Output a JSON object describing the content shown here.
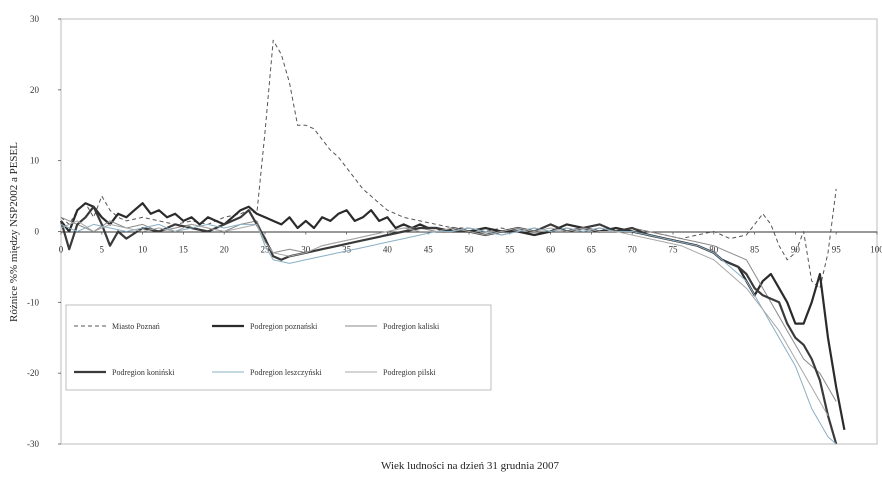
{
  "chart_data": {
    "type": "line",
    "title": "",
    "xlabel": "Wiek ludności na dzień 31 grudnia 2007",
    "ylabel": "Różnice %% między NSP2002 a PESEL",
    "xlim": [
      0,
      100
    ],
    "ylim": [
      -30,
      30
    ],
    "x_ticks": [
      0,
      5,
      10,
      15,
      20,
      25,
      30,
      35,
      40,
      45,
      50,
      55,
      60,
      65,
      70,
      75,
      80,
      85,
      90,
      95,
      100
    ],
    "y_ticks": [
      30,
      20,
      10,
      0,
      -10,
      -20,
      -30
    ],
    "grid": false,
    "legend": "lower-left inside plot, 2 rows x 3 columns",
    "series": [
      {
        "name": "Miasto Poznań",
        "color": "#555555",
        "style": "dashed",
        "x": [
          0,
          1,
          2,
          3,
          4,
          5,
          6,
          7,
          8,
          10,
          12,
          14,
          16,
          18,
          20,
          22,
          23,
          24,
          25,
          26,
          27,
          28,
          29,
          30,
          31,
          32,
          33,
          34,
          35,
          36,
          37,
          38,
          39,
          40,
          42,
          44,
          46,
          48,
          50,
          52,
          54,
          56,
          58,
          60,
          62,
          64,
          66,
          68,
          70,
          72,
          74,
          76,
          78,
          80,
          82,
          84,
          85,
          86,
          87,
          88,
          89,
          90,
          91,
          92,
          93,
          94,
          95
        ],
        "y": [
          2,
          1,
          3,
          4,
          2,
          5,
          3,
          2,
          1.5,
          2,
          1.5,
          1,
          1.5,
          1,
          2,
          2.5,
          3,
          2.5,
          14,
          27,
          25,
          21,
          15,
          15,
          14.5,
          13,
          11.5,
          10.5,
          9,
          7.5,
          6,
          5,
          4,
          3,
          2,
          1.5,
          1,
          0.5,
          0.5,
          0,
          0.5,
          0,
          -0.5,
          0,
          0.5,
          0,
          0.5,
          0,
          0.5,
          0,
          -0.5,
          -1,
          -0.5,
          0,
          -1,
          -0.5,
          1,
          2.5,
          1,
          -2,
          -4,
          -3,
          0,
          -7,
          -8,
          -3,
          6
        ]
      },
      {
        "name": "Podregion poznański",
        "color": "#2b2b2b",
        "style": "solid-thick",
        "x": [
          0,
          1,
          2,
          3,
          4,
          5,
          6,
          7,
          8,
          9,
          10,
          11,
          12,
          13,
          14,
          15,
          16,
          17,
          18,
          19,
          20,
          21,
          22,
          23,
          24,
          25,
          26,
          27,
          28,
          29,
          30,
          31,
          32,
          33,
          34,
          35,
          36,
          37,
          38,
          39,
          40,
          41,
          42,
          43,
          44,
          45,
          46,
          47,
          48,
          50,
          52,
          54,
          56,
          58,
          60,
          62,
          64,
          66,
          68,
          70,
          72,
          74,
          76,
          78,
          80,
          81,
          82,
          83,
          84,
          85,
          86,
          87,
          88,
          89,
          90,
          91,
          92,
          93,
          94,
          95,
          96
        ],
        "y": [
          1.5,
          0,
          3,
          4,
          3.5,
          2,
          1,
          2.5,
          2,
          3,
          4,
          2.5,
          3,
          2,
          2.5,
          1.5,
          2,
          1,
          2,
          1.5,
          1,
          2,
          3,
          3.5,
          2.5,
          2,
          1.5,
          1,
          2,
          0.5,
          1.5,
          0.5,
          2,
          1.5,
          2.5,
          3,
          1.5,
          2,
          3,
          1.5,
          2,
          0.5,
          1,
          0.5,
          1,
          0.5,
          0.5,
          0,
          0.5,
          0,
          0.5,
          0,
          0,
          -0.5,
          0,
          1,
          0.5,
          0,
          0.5,
          0,
          -0.5,
          -1,
          -1.5,
          -2,
          -3,
          -4,
          -4.5,
          -5,
          -7,
          -9,
          -7,
          -6,
          -8,
          -10,
          -13,
          -13,
          -10,
          -6,
          -15,
          -22,
          -28
        ]
      },
      {
        "name": "Podregion kaliski",
        "color": "#8a8a8a",
        "style": "solid-thin",
        "x": [
          0,
          2,
          4,
          6,
          8,
          10,
          12,
          14,
          16,
          18,
          20,
          22,
          24,
          25,
          26,
          28,
          30,
          32,
          34,
          36,
          38,
          40,
          42,
          44,
          46,
          48,
          50,
          52,
          54,
          56,
          58,
          60,
          62,
          64,
          66,
          68,
          70,
          72,
          74,
          76,
          78,
          80,
          82,
          84,
          85,
          86,
          87,
          88,
          89,
          90,
          91,
          92,
          93,
          94,
          95
        ],
        "y": [
          2,
          1,
          0,
          1.5,
          0.5,
          1,
          0,
          0.5,
          1,
          0.5,
          0,
          1,
          1.5,
          -1,
          -3,
          -2.5,
          -3,
          -2,
          -1.5,
          -1,
          -0.5,
          0,
          0.5,
          0.5,
          0,
          0,
          0.5,
          0,
          -0.5,
          0,
          0.5,
          0,
          0.5,
          0,
          0.5,
          0,
          0.5,
          0,
          -0.5,
          -1,
          -1.5,
          -2,
          -3,
          -4,
          -6,
          -8,
          -10,
          -12,
          -14,
          -16,
          -18,
          -19,
          -20,
          -22,
          -24
        ]
      },
      {
        "name": "Podregion koniński",
        "color": "#3a3a3a",
        "style": "solid-thick",
        "x": [
          0,
          1,
          2,
          3,
          4,
          5,
          6,
          7,
          8,
          10,
          12,
          14,
          16,
          18,
          20,
          22,
          23,
          24,
          25,
          26,
          27,
          28,
          30,
          32,
          34,
          36,
          38,
          40,
          42,
          44,
          46,
          48,
          50,
          52,
          54,
          56,
          58,
          60,
          62,
          64,
          66,
          68,
          70,
          72,
          74,
          76,
          78,
          80,
          81,
          82,
          83,
          84,
          85,
          86,
          87,
          88,
          89,
          90,
          91,
          92,
          93,
          94,
          95
        ],
        "y": [
          1.5,
          -2.5,
          1,
          2,
          3.5,
          1,
          -2,
          0,
          -1,
          0.5,
          0,
          1,
          0.5,
          0,
          1,
          2,
          3,
          1,
          -1,
          -3.5,
          -4,
          -3.5,
          -3,
          -2.5,
          -2,
          -1.5,
          -1,
          -0.5,
          0,
          0.5,
          0.5,
          0,
          0,
          -0.5,
          0,
          0.5,
          0,
          1,
          0,
          0.5,
          1,
          0,
          0.5,
          -0.5,
          -1,
          -1.5,
          -2,
          -3,
          -4,
          -4.5,
          -5,
          -6,
          -8,
          -9,
          -9.5,
          -10,
          -13,
          -15,
          -16,
          -18,
          -21,
          -26,
          -30
        ]
      },
      {
        "name": "Podregion leszczyński",
        "color": "#8ab0c4",
        "style": "solid-thin",
        "x": [
          0,
          2,
          4,
          6,
          8,
          10,
          12,
          14,
          16,
          18,
          20,
          22,
          24,
          25,
          26,
          28,
          30,
          32,
          34,
          36,
          38,
          40,
          42,
          44,
          46,
          48,
          50,
          52,
          54,
          56,
          58,
          60,
          62,
          64,
          66,
          68,
          70,
          72,
          74,
          76,
          78,
          80,
          81,
          82,
          83,
          84,
          85,
          86,
          87,
          88,
          89,
          90,
          91,
          92,
          93,
          94,
          95
        ],
        "y": [
          1,
          0,
          1,
          0.5,
          0,
          0.5,
          1,
          0,
          0.5,
          1,
          0.5,
          1,
          1,
          -2,
          -4,
          -4.5,
          -4,
          -3.5,
          -3,
          -2.5,
          -2,
          -1.5,
          -1,
          -0.5,
          0,
          0,
          0.5,
          0,
          -0.5,
          0,
          0.5,
          0,
          0.5,
          0,
          0.5,
          0,
          0,
          -0.5,
          -1,
          -1.5,
          -2,
          -3,
          -4,
          -5,
          -6,
          -7,
          -9,
          -11,
          -13,
          -15,
          -17,
          -19,
          -22,
          -25,
          -27,
          -29,
          -30
        ]
      },
      {
        "name": "Podregion pilski",
        "color": "#a8a8a8",
        "style": "solid-thin",
        "x": [
          0,
          2,
          4,
          6,
          8,
          10,
          12,
          14,
          16,
          18,
          20,
          22,
          24,
          25,
          26,
          28,
          30,
          32,
          34,
          36,
          38,
          40,
          42,
          44,
          46,
          48,
          50,
          52,
          54,
          56,
          58,
          60,
          62,
          64,
          66,
          68,
          70,
          72,
          74,
          76,
          78,
          80,
          82,
          84,
          86,
          88,
          90,
          92,
          94
        ],
        "y": [
          0.5,
          1.5,
          0,
          1,
          0.5,
          0,
          0.5,
          0,
          1,
          0.5,
          0,
          0.5,
          1,
          -1.5,
          -3,
          -3.5,
          -3,
          -2,
          -1.5,
          -1,
          -0.5,
          0,
          0.5,
          0,
          0,
          0.5,
          0,
          -0.5,
          0,
          0.5,
          0,
          0.5,
          0,
          0.5,
          0,
          0,
          -0.5,
          -1,
          -1.5,
          -2,
          -3,
          -4,
          -6,
          -8,
          -11,
          -14,
          -18,
          -22,
          -26
        ]
      }
    ]
  }
}
